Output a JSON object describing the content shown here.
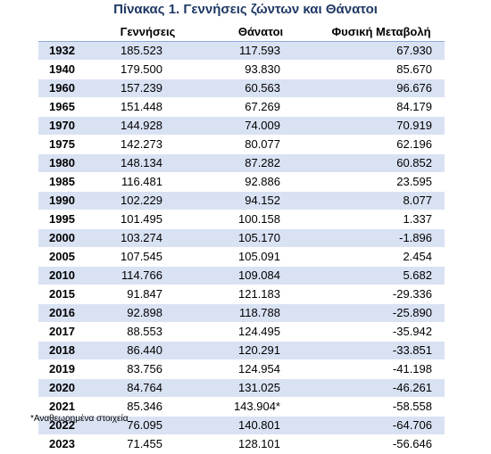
{
  "title": "Πίνακας 1. Γεννήσεις ζώντων και Θάνατοι",
  "columns": [
    "",
    "Γεννήσεις",
    "Θάνατοι",
    "Φυσική Μεταβολή"
  ],
  "rows": [
    {
      "year": "1932",
      "births": "185.523",
      "deaths": "117.593",
      "change": "67.930"
    },
    {
      "year": "1940",
      "births": "179.500",
      "deaths": "93.830",
      "change": "85.670"
    },
    {
      "year": "1960",
      "births": "157.239",
      "deaths": "60.563",
      "change": "96.676"
    },
    {
      "year": "1965",
      "births": "151.448",
      "deaths": "67.269",
      "change": "84.179"
    },
    {
      "year": "1970",
      "births": "144.928",
      "deaths": "74.009",
      "change": "70.919"
    },
    {
      "year": "1975",
      "births": "142.273",
      "deaths": "80.077",
      "change": "62.196"
    },
    {
      "year": "1980",
      "births": "148.134",
      "deaths": "87.282",
      "change": "60.852"
    },
    {
      "year": "1985",
      "births": "116.481",
      "deaths": "92.886",
      "change": "23.595"
    },
    {
      "year": "1990",
      "births": "102.229",
      "deaths": "94.152",
      "change": "8.077"
    },
    {
      "year": "1995",
      "births": "101.495",
      "deaths": "100.158",
      "change": "1.337"
    },
    {
      "year": "2000",
      "births": "103.274",
      "deaths": "105.170",
      "change": "-1.896"
    },
    {
      "year": "2005",
      "births": "107.545",
      "deaths": "105.091",
      "change": "2.454"
    },
    {
      "year": "2010",
      "births": "114.766",
      "deaths": "109.084",
      "change": "5.682"
    },
    {
      "year": "2015",
      "births": "91.847",
      "deaths": "121.183",
      "change": "-29.336"
    },
    {
      "year": "2016",
      "births": "92.898",
      "deaths": "118.788",
      "change": "-25.890"
    },
    {
      "year": "2017",
      "births": "88.553",
      "deaths": "124.495",
      "change": "-35.942"
    },
    {
      "year": "2018",
      "births": "86.440",
      "deaths": "120.291",
      "change": "-33.851"
    },
    {
      "year": "2019",
      "births": "83.756",
      "deaths": "124.954",
      "change": "-41.198"
    },
    {
      "year": "2020",
      "births": "84.764",
      "deaths": "131.025",
      "change": "-46.261"
    },
    {
      "year": "2021",
      "births": "85.346",
      "deaths": "143.904*",
      "change": "-58.558"
    },
    {
      "year": "2022",
      "births": "76.095",
      "deaths": "140.801",
      "change": "-64.706"
    },
    {
      "year": "2023",
      "births": "71.455",
      "deaths": "128.101",
      "change": "-56.646"
    }
  ],
  "note": "*Αναθεωρημένα στοιχεία",
  "colors": {
    "title": "#1f3864",
    "row_shade": "#d9e2f3",
    "header_rule": "#8eaadb"
  }
}
